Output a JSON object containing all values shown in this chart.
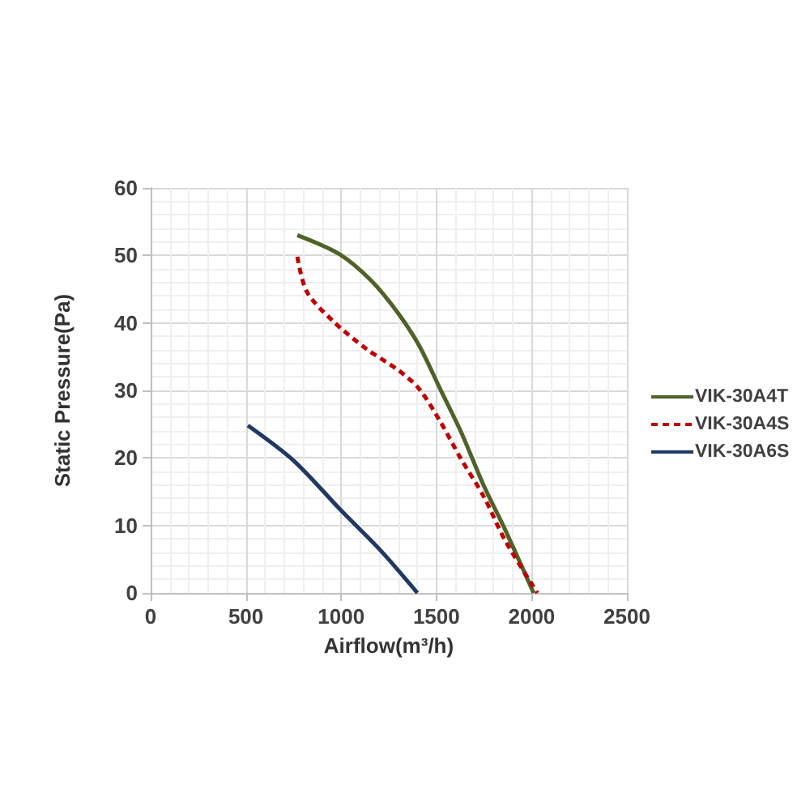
{
  "chart_data": {
    "type": "line",
    "xlabel": "Airflow(m³/h)",
    "ylabel": "Static Pressure(Pa)",
    "xlim": [
      0,
      2500
    ],
    "xticks": [
      0,
      500,
      1000,
      1500,
      2000,
      2500
    ],
    "ylim": [
      0,
      60
    ],
    "yticks": [
      0,
      10,
      20,
      30,
      40,
      50,
      60
    ],
    "grid": true,
    "legend": "right",
    "marker": "none",
    "series": [
      {
        "name": "VIK-30A4T",
        "color": "#4f6228",
        "line_style": "solid",
        "x": [
          770,
          990,
          1160,
          1300,
          1410,
          1520,
          1630,
          1750,
          1860,
          2010
        ],
        "values": [
          53,
          50.2,
          46.2,
          41.4,
          36.6,
          30.2,
          23.8,
          15.8,
          9.4,
          0
        ]
      },
      {
        "name": "VIK-30A4S",
        "color": "#c00000",
        "line_style": "dashed",
        "x": [
          770,
          820,
          960,
          1130,
          1300,
          1410,
          1520,
          1630,
          1750,
          1860,
          2030
        ],
        "values": [
          49.8,
          44.6,
          40.2,
          36.2,
          33,
          30.2,
          25.4,
          19.8,
          14.2,
          7.8,
          0
        ]
      },
      {
        "name": "VIK-30A6S",
        "color": "#1f3864",
        "line_style": "solid",
        "x": [
          510,
          750,
          1000,
          1210,
          1400
        ],
        "values": [
          24.8,
          19.6,
          12.2,
          6.2,
          0
        ]
      }
    ]
  }
}
